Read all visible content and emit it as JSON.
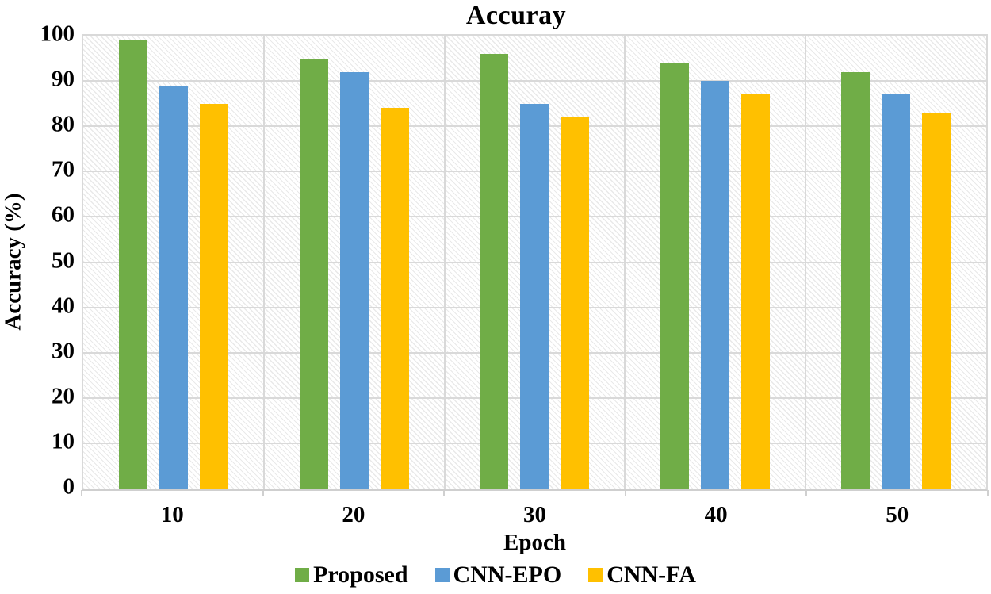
{
  "chart_data": {
    "type": "bar",
    "title": "Accuray",
    "xlabel": "Epoch",
    "ylabel": "Accuracy (%)",
    "ylim": [
      0,
      100
    ],
    "ytick_step": 10,
    "yticks": [
      0,
      10,
      20,
      30,
      40,
      50,
      60,
      70,
      80,
      90,
      100
    ],
    "grid": "horizontal-and-vertical-category-boundaries",
    "plot_background": "light-diagonal-hatch",
    "legend_position": "bottom-center",
    "categories": [
      "10",
      "20",
      "30",
      "40",
      "50"
    ],
    "series": [
      {
        "name": "Proposed",
        "color": "#70AD47",
        "values": [
          99,
          95,
          96,
          94,
          92
        ]
      },
      {
        "name": "CNN-EPO",
        "color": "#5B9BD5",
        "values": [
          89,
          92,
          85,
          90,
          87
        ]
      },
      {
        "name": "CNN-FA",
        "color": "#FFC000",
        "values": [
          85,
          84,
          82,
          87,
          83
        ]
      }
    ],
    "colors": {
      "gridline": "#d9d9d9",
      "axis_line": "#cfcfcf",
      "text": "#000000",
      "background": "#ffffff"
    }
  }
}
